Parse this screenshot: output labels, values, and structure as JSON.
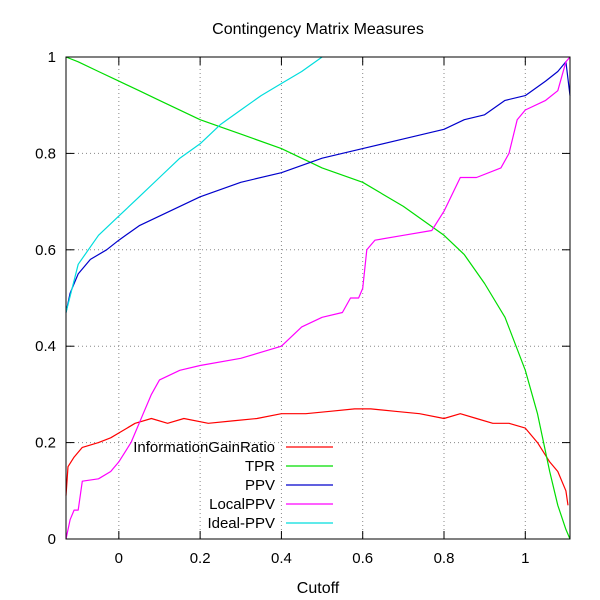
{
  "chart_data": {
    "type": "line",
    "title": "Contingency Matrix Measures",
    "xlabel": "Cutoff",
    "ylabel": "",
    "xlim": [
      -0.13,
      1.11
    ],
    "ylim": [
      0,
      1
    ],
    "grid": true,
    "legend_position": "bottom-right (inside)",
    "xticks": [
      0,
      0.2,
      0.4,
      0.6,
      0.8,
      1
    ],
    "xtick_labels": [
      "0",
      "0.2",
      "0.4",
      "0.6",
      "0.8",
      "1"
    ],
    "yticks": [
      0,
      0.2,
      0.4,
      0.6,
      0.8,
      1
    ],
    "ytick_labels": [
      "0",
      "0.2",
      "0.4",
      "0.6",
      "0.8",
      "1"
    ],
    "series": [
      {
        "name": "InformationGainRatio",
        "color": "#ff0000",
        "points": [
          [
            -0.13,
            0.09
          ],
          [
            -0.125,
            0.15
          ],
          [
            -0.11,
            0.17
          ],
          [
            -0.09,
            0.19
          ],
          [
            -0.05,
            0.2
          ],
          [
            -0.02,
            0.21
          ],
          [
            0.0,
            0.22
          ],
          [
            0.04,
            0.24
          ],
          [
            0.08,
            0.25
          ],
          [
            0.12,
            0.24
          ],
          [
            0.16,
            0.25
          ],
          [
            0.22,
            0.24
          ],
          [
            0.28,
            0.245
          ],
          [
            0.34,
            0.25
          ],
          [
            0.4,
            0.26
          ],
          [
            0.46,
            0.26
          ],
          [
            0.52,
            0.265
          ],
          [
            0.58,
            0.27
          ],
          [
            0.62,
            0.27
          ],
          [
            0.68,
            0.265
          ],
          [
            0.74,
            0.26
          ],
          [
            0.8,
            0.25
          ],
          [
            0.84,
            0.26
          ],
          [
            0.88,
            0.25
          ],
          [
            0.92,
            0.24
          ],
          [
            0.96,
            0.24
          ],
          [
            1.0,
            0.23
          ],
          [
            1.03,
            0.2
          ],
          [
            1.06,
            0.16
          ],
          [
            1.08,
            0.14
          ],
          [
            1.1,
            0.1
          ],
          [
            1.105,
            0.07
          ]
        ]
      },
      {
        "name": "TPR",
        "color": "#00dd00",
        "points": [
          [
            -0.13,
            1.0
          ],
          [
            -0.1,
            0.99
          ],
          [
            -0.05,
            0.97
          ],
          [
            0.0,
            0.95
          ],
          [
            0.05,
            0.93
          ],
          [
            0.1,
            0.91
          ],
          [
            0.2,
            0.87
          ],
          [
            0.3,
            0.84
          ],
          [
            0.4,
            0.81
          ],
          [
            0.5,
            0.77
          ],
          [
            0.6,
            0.74
          ],
          [
            0.7,
            0.69
          ],
          [
            0.8,
            0.63
          ],
          [
            0.85,
            0.59
          ],
          [
            0.9,
            0.53
          ],
          [
            0.95,
            0.46
          ],
          [
            1.0,
            0.35
          ],
          [
            1.03,
            0.26
          ],
          [
            1.06,
            0.14
          ],
          [
            1.08,
            0.07
          ],
          [
            1.1,
            0.02
          ],
          [
            1.11,
            0.0
          ]
        ]
      },
      {
        "name": "PPV",
        "color": "#0000cc",
        "points": [
          [
            -0.13,
            0.47
          ],
          [
            -0.12,
            0.51
          ],
          [
            -0.1,
            0.55
          ],
          [
            -0.07,
            0.58
          ],
          [
            -0.03,
            0.6
          ],
          [
            0.0,
            0.62
          ],
          [
            0.05,
            0.65
          ],
          [
            0.1,
            0.67
          ],
          [
            0.2,
            0.71
          ],
          [
            0.3,
            0.74
          ],
          [
            0.4,
            0.76
          ],
          [
            0.5,
            0.79
          ],
          [
            0.6,
            0.81
          ],
          [
            0.7,
            0.83
          ],
          [
            0.8,
            0.85
          ],
          [
            0.85,
            0.87
          ],
          [
            0.9,
            0.88
          ],
          [
            0.95,
            0.91
          ],
          [
            1.0,
            0.92
          ],
          [
            1.05,
            0.95
          ],
          [
            1.08,
            0.97
          ],
          [
            1.1,
            0.99
          ],
          [
            1.11,
            0.92
          ]
        ]
      },
      {
        "name": "LocalPPV",
        "color": "#ff00ff",
        "points": [
          [
            -0.13,
            0.0
          ],
          [
            -0.12,
            0.04
          ],
          [
            -0.11,
            0.06
          ],
          [
            -0.1,
            0.06
          ],
          [
            -0.09,
            0.12
          ],
          [
            -0.05,
            0.125
          ],
          [
            -0.02,
            0.14
          ],
          [
            0.0,
            0.16
          ],
          [
            0.03,
            0.2
          ],
          [
            0.06,
            0.26
          ],
          [
            0.08,
            0.3
          ],
          [
            0.1,
            0.33
          ],
          [
            0.15,
            0.35
          ],
          [
            0.2,
            0.36
          ],
          [
            0.3,
            0.375
          ],
          [
            0.4,
            0.4
          ],
          [
            0.45,
            0.44
          ],
          [
            0.5,
            0.46
          ],
          [
            0.55,
            0.47
          ],
          [
            0.57,
            0.5
          ],
          [
            0.59,
            0.5
          ],
          [
            0.6,
            0.52
          ],
          [
            0.61,
            0.6
          ],
          [
            0.63,
            0.62
          ],
          [
            0.7,
            0.63
          ],
          [
            0.77,
            0.64
          ],
          [
            0.8,
            0.68
          ],
          [
            0.84,
            0.75
          ],
          [
            0.88,
            0.75
          ],
          [
            0.94,
            0.77
          ],
          [
            0.96,
            0.8
          ],
          [
            0.98,
            0.87
          ],
          [
            1.0,
            0.89
          ],
          [
            1.05,
            0.91
          ],
          [
            1.08,
            0.93
          ],
          [
            1.1,
            0.99
          ],
          [
            1.11,
            1.0
          ]
        ]
      },
      {
        "name": "Ideal-PPV",
        "color": "#00dddd",
        "points": [
          [
            -0.13,
            0.47
          ],
          [
            -0.1,
            0.57
          ],
          [
            -0.05,
            0.63
          ],
          [
            0.0,
            0.67
          ],
          [
            0.05,
            0.71
          ],
          [
            0.1,
            0.75
          ],
          [
            0.15,
            0.79
          ],
          [
            0.2,
            0.82
          ],
          [
            0.25,
            0.86
          ],
          [
            0.3,
            0.89
          ],
          [
            0.35,
            0.92
          ],
          [
            0.4,
            0.945
          ],
          [
            0.45,
            0.97
          ],
          [
            0.5,
            1.0
          ]
        ]
      }
    ]
  }
}
